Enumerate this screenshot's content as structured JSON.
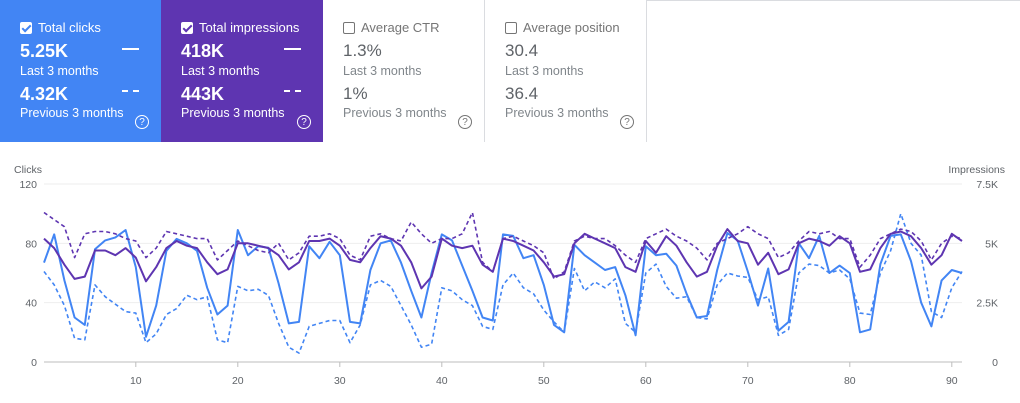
{
  "cards": [
    {
      "label": "Total clicks",
      "checked": true,
      "current": "5.25K",
      "current_label": "Last 3 months",
      "previous": "4.32K",
      "previous_label": "Previous 3 months",
      "color": "#4285f4"
    },
    {
      "label": "Total impressions",
      "checked": true,
      "current": "418K",
      "current_label": "Last 3 months",
      "previous": "443K",
      "previous_label": "Previous 3 months",
      "color": "#5e35b1"
    },
    {
      "label": "Average CTR",
      "checked": false,
      "current": "1.3%",
      "current_label": "Last 3 months",
      "previous": "1%",
      "previous_label": "Previous 3 months"
    },
    {
      "label": "Average position",
      "checked": false,
      "current": "30.4",
      "current_label": "Last 3 months",
      "previous": "36.4",
      "previous_label": "Previous 3 months"
    }
  ],
  "help_glyph": "?",
  "chart_data": {
    "type": "line",
    "left_axis": {
      "label": "Clicks",
      "ticks": [
        "0",
        "40",
        "80",
        "120"
      ],
      "ylim": [
        0,
        120
      ]
    },
    "right_axis": {
      "label": "Impressions",
      "ticks": [
        "0",
        "2.5K",
        "5K",
        "7.5K"
      ],
      "ylim": [
        0,
        7500
      ]
    },
    "x_ticks": [
      "10",
      "20",
      "30",
      "40",
      "50",
      "60",
      "70",
      "80",
      "90"
    ],
    "x_range": [
      1,
      91
    ],
    "grid": true,
    "series": [
      {
        "axis": "left",
        "style": "solid",
        "color": "#4285f4",
        "values": [
          67,
          86,
          55,
          30,
          25,
          76,
          82,
          84,
          89,
          64,
          17,
          38,
          75,
          83,
          80,
          75,
          50,
          32,
          38,
          89,
          72,
          78,
          77,
          53,
          26,
          27,
          78,
          70,
          81,
          72,
          27,
          26,
          62,
          80,
          82,
          67,
          48,
          30,
          60,
          86,
          82,
          65,
          48,
          30,
          28,
          86,
          85,
          70,
          72,
          52,
          25,
          20,
          79,
          72,
          67,
          62,
          64,
          45,
          18,
          78,
          72,
          73,
          65,
          46,
          30,
          31,
          62,
          87,
          82,
          61,
          38,
          63,
          21,
          27,
          80,
          70,
          85,
          60,
          65,
          60,
          20,
          22,
          66,
          85,
          86,
          68,
          40,
          24,
          55,
          62,
          60
        ]
      },
      {
        "axis": "left",
        "style": "dashed",
        "color": "#4285f4",
        "values": [
          61,
          52,
          38,
          16,
          15,
          52,
          44,
          39,
          34,
          33,
          13,
          19,
          32,
          36,
          45,
          42,
          44,
          15,
          13,
          51,
          48,
          49,
          45,
          26,
          10,
          6,
          24,
          26,
          28,
          28,
          13,
          25,
          52,
          55,
          51,
          38,
          25,
          10,
          12,
          50,
          48,
          42,
          38,
          24,
          22,
          52,
          60,
          50,
          46,
          35,
          27,
          20,
          63,
          48,
          54,
          50,
          56,
          26,
          20,
          60,
          66,
          51,
          43,
          44,
          30,
          29,
          52,
          60,
          58,
          57,
          42,
          44,
          18,
          22,
          60,
          66,
          65,
          60,
          62,
          56,
          33,
          32,
          60,
          75,
          100,
          80,
          72,
          34,
          30,
          50,
          61
        ]
      },
      {
        "axis": "right",
        "style": "solid",
        "color": "#5e35b1",
        "values": [
          5.2,
          4.8,
          4.1,
          3.5,
          3.6,
          4.7,
          4.7,
          4.5,
          4.8,
          4.4,
          3.4,
          4.0,
          4.8,
          5.1,
          4.9,
          4.8,
          4.2,
          3.7,
          3.9,
          5.0,
          5.0,
          4.9,
          4.8,
          4.5,
          3.9,
          4.2,
          5.1,
          5.1,
          5.2,
          4.9,
          4.3,
          4.2,
          4.8,
          5.3,
          5.2,
          4.9,
          4.2,
          3.1,
          3.6,
          5.2,
          4.9,
          4.8,
          4.9,
          4.1,
          3.8,
          5.2,
          5.1,
          4.9,
          4.7,
          4.2,
          3.6,
          3.7,
          5.0,
          5.4,
          5.2,
          5.0,
          4.8,
          4.0,
          3.8,
          5.1,
          4.6,
          5.3,
          4.9,
          4.2,
          3.6,
          3.8,
          4.9,
          5.6,
          5.1,
          5.0,
          4.1,
          4.6,
          3.7,
          3.9,
          5.0,
          5.2,
          5.1,
          4.9,
          5.3,
          5.0,
          3.8,
          3.9,
          4.8,
          5.4,
          5.5,
          5.3,
          4.8,
          4.1,
          4.5,
          5.4,
          5.1
        ]
      },
      {
        "axis": "right",
        "style": "dashed",
        "color": "#5e35b1",
        "values": [
          6.3,
          6.0,
          5.7,
          4.4,
          5.4,
          5.5,
          5.5,
          5.4,
          5.2,
          5.1,
          4.4,
          4.8,
          5.5,
          5.4,
          5.3,
          5.2,
          5.2,
          4.3,
          4.7,
          5.1,
          4.9,
          4.7,
          4.6,
          5.0,
          4.3,
          4.6,
          5.3,
          5.3,
          5.4,
          5.2,
          4.5,
          4.3,
          5.3,
          5.4,
          5.2,
          5.1,
          5.9,
          5.4,
          5.0,
          5.2,
          5.2,
          5.4,
          6.3,
          4.2,
          3.8,
          5.2,
          5.3,
          5.1,
          4.9,
          4.6,
          3.5,
          3.8,
          5.1,
          5.3,
          5.2,
          5.2,
          4.9,
          4.5,
          4.2,
          5.2,
          5.4,
          5.6,
          5.3,
          5.1,
          4.8,
          4.3,
          5.0,
          5.2,
          5.4,
          5.7,
          5.4,
          5.2,
          4.4,
          4.6,
          5.1,
          5.5,
          5.4,
          5.5,
          5.2,
          5.2,
          4.0,
          4.5,
          5.2,
          5.4,
          5.6,
          5.5,
          5.1,
          4.3,
          5.0,
          5.3,
          5.2
        ]
      }
    ]
  }
}
